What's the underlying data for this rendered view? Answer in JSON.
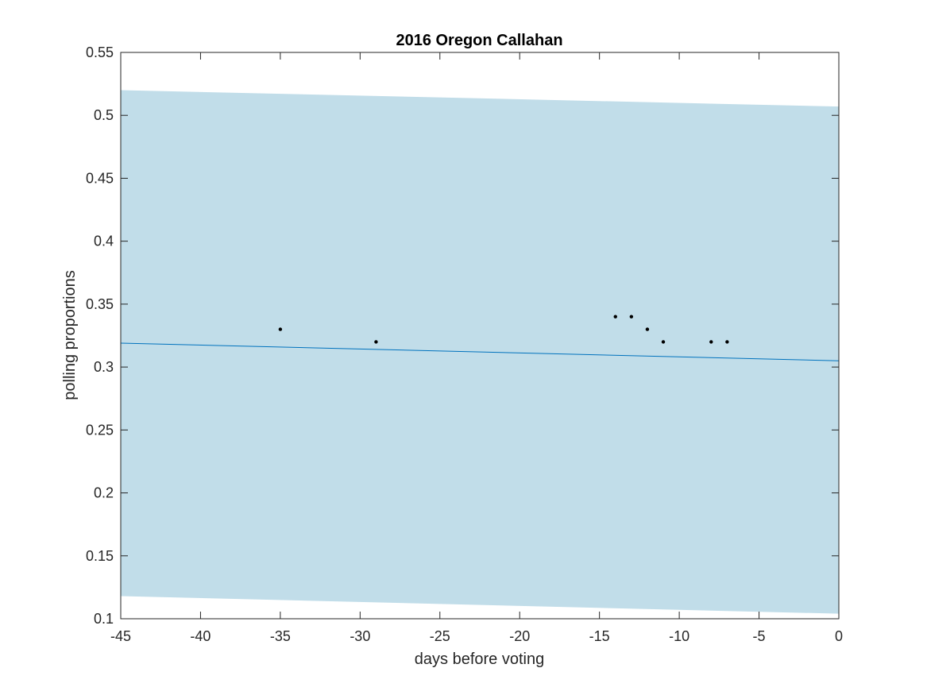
{
  "chart_data": {
    "type": "scatter",
    "title": "2016 Oregon Callahan",
    "xlabel": "days before voting",
    "ylabel": "polling proportions",
    "xlim": [
      -45,
      0
    ],
    "ylim": [
      0.1,
      0.55
    ],
    "xticks": [
      -45,
      -40,
      -35,
      -30,
      -25,
      -20,
      -15,
      -10,
      -5,
      0
    ],
    "yticks": [
      0.1,
      0.15,
      0.2,
      0.25,
      0.3,
      0.35,
      0.4,
      0.45,
      0.5,
      0.55
    ],
    "xtick_labels": [
      "-45",
      "-40",
      "-35",
      "-30",
      "-25",
      "-20",
      "-15",
      "-10",
      "-5",
      "0"
    ],
    "ytick_labels": [
      "0.1",
      "0.15",
      "0.2",
      "0.25",
      "0.3",
      "0.35",
      "0.4",
      "0.45",
      "0.5",
      "0.55"
    ],
    "grid": false,
    "points": [
      {
        "x": -35,
        "y": 0.33
      },
      {
        "x": -29,
        "y": 0.32
      },
      {
        "x": -14,
        "y": 0.34
      },
      {
        "x": -13,
        "y": 0.34
      },
      {
        "x": -12,
        "y": 0.33
      },
      {
        "x": -11,
        "y": 0.32
      },
      {
        "x": -8,
        "y": 0.32
      },
      {
        "x": -7,
        "y": 0.32
      }
    ],
    "trend_line": {
      "x": [
        -45,
        0
      ],
      "y": [
        0.319,
        0.305
      ]
    },
    "band": {
      "x": [
        -45,
        0
      ],
      "upper": [
        0.52,
        0.507
      ],
      "lower": [
        0.118,
        0.104
      ]
    },
    "colors": {
      "band": "#c1dde9",
      "line": "#0072bd",
      "points": "#000000",
      "axes": "#262626"
    }
  }
}
